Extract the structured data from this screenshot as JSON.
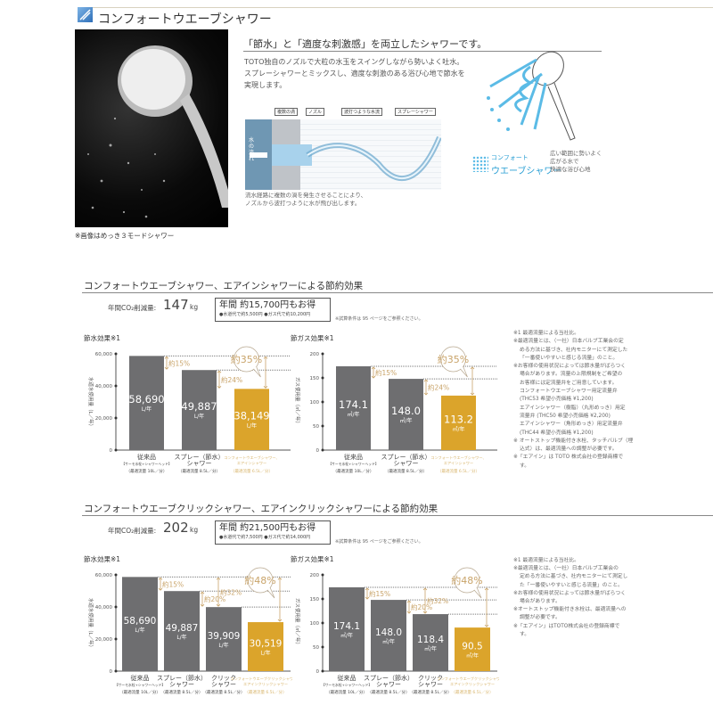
{
  "header": {
    "title": "コンフォートウエーブシャワー",
    "icon": "shower-wave-icon",
    "accent": "#3a7fc4"
  },
  "photo": {
    "caption": "※画像はめっき３モードシャワー"
  },
  "intro": {
    "headline": "「節水」と「適度な刺激感」を両立したシャワーです。",
    "body": [
      "TOTO独自のノズルで大粒の水玉をスイングしながら勢いよく吐水。",
      "スプレーシャワーとミックスし、適度な刺激のある浴び心地で節水を",
      "実現します。"
    ],
    "diagram_labels": [
      "複数の渦",
      "ノズル",
      "波打つような水流",
      "スプレーシャワー"
    ],
    "flow_label": "水の流れ",
    "diagram_caption": [
      "流水経路に複数の渦を発生させることにより、",
      "ノズルから波打つように水が飛び出します。"
    ],
    "brand_line1": "コンフォート",
    "brand_line2": "ウエーブシャワー",
    "brand_desc": [
      "広い範囲に勢いよく",
      "広がる水で",
      "快適な浴び心地"
    ]
  },
  "sections": [
    {
      "title": "コンフォートウエーブシャワー、エアインシャワーによる節約効果",
      "co2_label": "年間CO₂削減量:",
      "co2_value": "147",
      "co2_unit": "kg",
      "savings_main": "年間 約15,700円もお得",
      "savings_sub": "●水道代で約5,500円 ●ガス代で約10,200円",
      "condition_note": "※試算条件は 95 ページをご参照ください。",
      "notes": [
        "※1 最適流量による当社比。",
        "※最適流量とは、（一社）日本バルブ工業会の定",
        "める方法に基づき、社内モニターにて測定した",
        "「一番使いやすいと感じる流量」のこと。",
        "※お客様の使用状況によっては節水量がばらつく",
        "場合があります。流量の上限規制をご希望の",
        "お客様には定流量弁をご用意しています。",
        "コンフォートウエーブシャワー用定流量弁",
        "(THC53 希望小売価格 ¥1,200)",
        "エアインシャワー（樹脂）（丸形めっき）用定",
        "流量弁 (THC50 希望小売価格 ¥2,200)",
        "エアインシャワー（角形めっき）用定流量弁",
        "(THC44 希望小売価格 ¥1,200)",
        "※ オートストップ機能付き水栓、タッチバルブ（埋",
        "込式）は、最適流量への調整が必要です。",
        "※「エアイン」は TOTO 株式会社の登録商標で",
        "す。"
      ]
    },
    {
      "title": "コンフォートウエーブクリックシャワー、エアインクリックシャワーによる節約効果",
      "co2_label": "年間CO₂削減量:",
      "co2_value": "202",
      "co2_unit": "kg",
      "savings_main": "年間 約21,500円もお得",
      "savings_sub": "●水道代で約7,500円 ●ガス代で約14,000円",
      "condition_note": "※試算条件は 95 ページをご参照ください。",
      "notes": [
        "※1 最適流量による当社比。",
        "※最適流量とは、（一社）日本バルブ工業会の",
        "定める方法に基づき、社内モニターにて測定し",
        "た「一番使いやすいと感じる流量」のこと。",
        "※お客様の使用状況によっては節水量がばらつく",
        "場合があります。",
        "※オートストップ機能付き水栓は、最適流量への",
        "調整が必要です。",
        "※「エアイン」はTOTO株式会社の登録商標で",
        "す。"
      ]
    }
  ],
  "colors": {
    "bar": "#6e6e70",
    "highlight": "#dba42b",
    "highlight_text": "#d8b56c",
    "annotation": "#c9a46a",
    "drop_blue": "#2aa8d8",
    "drop_green": "#2f9a57"
  },
  "chart_data": [
    {
      "type": "bar",
      "title": "節水効果※1",
      "ylabel": "水道水使用量（L／年）",
      "ylim": [
        0,
        60000
      ],
      "yticks": [
        "60,000",
        "40,000",
        "20,000",
        "0"
      ],
      "ytick_values": [
        60000,
        40000,
        20000,
        0
      ],
      "categories": [
        {
          "name": "従来品",
          "sub": "【サーモ水栓+シャワーヘッド】",
          "cond": "（最適流量 10L／分）"
        },
        {
          "name": "スプレー（節水）",
          "sub": "シャワー",
          "cond": "（最適流量 8.5L／分）"
        },
        {
          "name": "コンフォートウエーブシャワー、",
          "sub": "エアインシャワー",
          "cond": "（最適流量 6.5L／分）"
        }
      ],
      "values": [
        58690,
        49887,
        38149
      ],
      "value_labels": [
        "58,690",
        "49,887",
        "38,149"
      ],
      "unit": "L/年",
      "highlight_index": 2,
      "annotations": [
        {
          "from": 0,
          "to": 1,
          "label": "約15%"
        },
        {
          "from": 1,
          "to": 2,
          "label": "約24%"
        },
        {
          "from": 0,
          "to": 2,
          "label": "約35%",
          "balloon": true
        }
      ]
    },
    {
      "type": "bar",
      "title": "節ガス効果※1",
      "ylabel": "ガス使用量（㎥／年）",
      "ylim": [
        0,
        200
      ],
      "yticks": [
        "200",
        "150",
        "100",
        "50",
        "0"
      ],
      "ytick_values": [
        200,
        150,
        100,
        50,
        0
      ],
      "categories": [
        {
          "name": "従来品",
          "sub": "【サーモ水栓+シャワーヘッド】",
          "cond": "（最適流量 10L／分）"
        },
        {
          "name": "スプレー（節水）",
          "sub": "シャワー",
          "cond": "（最適流量 8.5L／分）"
        },
        {
          "name": "コンフォートウエーブシャワー、",
          "sub": "エアインシャワー",
          "cond": "（最適流量 6.5L／分）"
        }
      ],
      "values": [
        174.1,
        148.0,
        113.2
      ],
      "value_labels": [
        "174.1",
        "148.0",
        "113.2"
      ],
      "unit": "㎥/年",
      "highlight_index": 2,
      "annotations": [
        {
          "from": 0,
          "to": 1,
          "label": "約15%"
        },
        {
          "from": 1,
          "to": 2,
          "label": "約24%"
        },
        {
          "from": 0,
          "to": 2,
          "label": "約35%",
          "balloon": true
        }
      ]
    },
    {
      "type": "bar",
      "title": "節水効果※1",
      "ylabel": "水道水使用量（L／年）",
      "ylim": [
        0,
        60000
      ],
      "yticks": [
        "60,000",
        "40,000",
        "20,000",
        "0"
      ],
      "ytick_values": [
        60000,
        40000,
        20000,
        0
      ],
      "categories": [
        {
          "name": "従来品",
          "sub": "【サーモ水栓+シャワーヘッド】",
          "cond": "（最適流量 10L／分）"
        },
        {
          "name": "スプレー（節水）",
          "sub": "シャワー",
          "cond": "（最適流量 8.5L／分）"
        },
        {
          "name": "クリック",
          "sub": "シャワー",
          "cond": "（最適流量 8.5L／分）"
        },
        {
          "name": "コンフォートウエーブクリックシャワー、",
          "sub": "エアインクリックシャワー",
          "cond": "（最適流量 6.5L／分）"
        }
      ],
      "values": [
        58690,
        49887,
        39909,
        30519
      ],
      "value_labels": [
        "58,690",
        "49,887",
        "39,909",
        "30,519"
      ],
      "unit": "L/年",
      "highlight_index": 3,
      "annotations": [
        {
          "from": 0,
          "to": 1,
          "label": "約15%"
        },
        {
          "from": 1,
          "to": 2,
          "label": "約20%"
        },
        {
          "from": 0,
          "to": 2,
          "label": "約32%"
        },
        {
          "from": 0,
          "to": 3,
          "label": "約48%",
          "balloon": true
        }
      ]
    },
    {
      "type": "bar",
      "title": "節ガス効果※1",
      "ylabel": "ガス使用量（㎥／年）",
      "ylim": [
        0,
        200
      ],
      "yticks": [
        "200",
        "150",
        "100",
        "50",
        "0"
      ],
      "ytick_values": [
        200,
        150,
        100,
        50,
        0
      ],
      "categories": [
        {
          "name": "従来品",
          "sub": "【サーモ水栓+シャワーヘッド】",
          "cond": "（最適流量 10L／分）"
        },
        {
          "name": "スプレー（節水）",
          "sub": "シャワー",
          "cond": "（最適流量 8.5L／分）"
        },
        {
          "name": "クリック",
          "sub": "シャワー",
          "cond": "（最適流量 8.5L／分）"
        },
        {
          "name": "コンフォートウエーブクリックシャワー、",
          "sub": "エアインクリックシャワー",
          "cond": "（最適流量 6.5L／分）"
        }
      ],
      "values": [
        174.1,
        148.0,
        118.4,
        90.5
      ],
      "value_labels": [
        "174.1",
        "148.0",
        "118.4",
        "90.5"
      ],
      "unit": "㎥/年",
      "highlight_index": 3,
      "annotations": [
        {
          "from": 0,
          "to": 1,
          "label": "約15%"
        },
        {
          "from": 1,
          "to": 2,
          "label": "約20%"
        },
        {
          "from": 0,
          "to": 2,
          "label": "約32%"
        },
        {
          "from": 0,
          "to": 3,
          "label": "約48%",
          "balloon": true
        }
      ]
    }
  ]
}
